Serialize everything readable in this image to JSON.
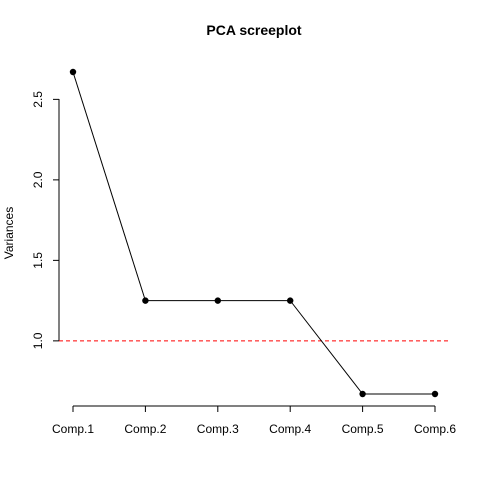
{
  "chart_data": {
    "type": "line",
    "title": "PCA screeplot",
    "xlabel": "",
    "ylabel": "Variances",
    "categories": [
      "Comp.1",
      "Comp.2",
      "Comp.3",
      "Comp.4",
      "Comp.5",
      "Comp.6"
    ],
    "series": [
      {
        "values": [
          2.67,
          1.25,
          1.25,
          1.25,
          0.67,
          0.67
        ]
      }
    ],
    "y_ticks": [
      "1.0",
      "1.5",
      "2.0",
      "2.5"
    ],
    "ylim": [
      0.67,
      2.67
    ],
    "reference_line": {
      "y": 1.0,
      "color": "#ff0000",
      "style": "dashed"
    },
    "grid": false,
    "marker": "filled-circle",
    "line_color": "#000000"
  }
}
